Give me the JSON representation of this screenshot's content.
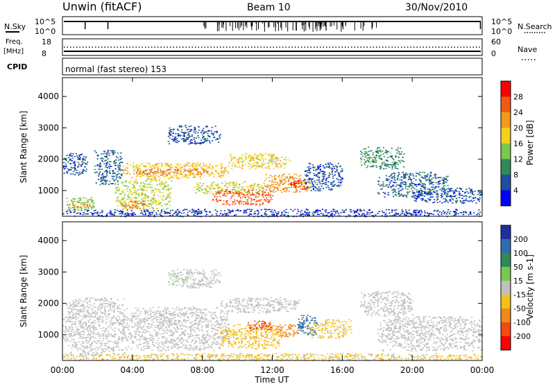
{
  "header": {
    "station": "Unwin (fitACF)",
    "beam": "Beam 10",
    "date": "30/Nov/2010"
  },
  "top_strip": {
    "nsky_label": "N.Sky",
    "nsky_ticks": [
      "10^5",
      "10^0"
    ],
    "nsearch_label": "N.Search",
    "nsearch_ticks": [
      "10^5",
      "10^0"
    ],
    "freq_label": "Freq.",
    "freq_unit": "[MHz]",
    "freq_ticks": [
      "18",
      "8"
    ],
    "nave_label": "Nave",
    "nave_ticks": [
      "60",
      "0"
    ],
    "cpid_label": "CPID",
    "cpid_value": "normal (fast stereo) 153"
  },
  "colors": {
    "power": [
      "#0000ff",
      "#1e4fa0",
      "#2e8b57",
      "#7cc84a",
      "#f2d21c",
      "#f29a1a",
      "#f25a12",
      "#ff0000"
    ],
    "velocity": [
      "#1e2fa0",
      "#2e6db0",
      "#2e8b57",
      "#78c850",
      "#c0c0c0",
      "#f2c21c",
      "#f28a1a",
      "#f24a12",
      "#ff0000"
    ],
    "ground_scatter": "#c0c0c0"
  },
  "chart_data": [
    {
      "type": "heatmap",
      "panel": "power",
      "ylabel": "Slant Range [km]",
      "ylim": [
        180,
        4600
      ],
      "yticks": [
        "1000",
        "2000",
        "3000",
        "4000"
      ],
      "xlim": [
        0,
        24
      ],
      "colorbar": {
        "label": "Power [dB]",
        "ticks": [
          "4",
          "8",
          "12",
          "16",
          "20",
          "24",
          "28"
        ],
        "range": [
          0,
          32
        ]
      },
      "regions": [
        {
          "t0": 0.0,
          "t1": 1.4,
          "r0": 1500,
          "r1": 2200,
          "level": 6
        },
        {
          "t0": 0.2,
          "t1": 1.8,
          "r0": 350,
          "r1": 800,
          "level": 14
        },
        {
          "t0": 0.5,
          "t1": 1.6,
          "r0": 450,
          "r1": 650,
          "level": 22
        },
        {
          "t0": 1.8,
          "t1": 3.4,
          "r0": 1200,
          "r1": 2300,
          "level": 7
        },
        {
          "t0": 3.0,
          "t1": 6.2,
          "r0": 400,
          "r1": 1400,
          "level": 16
        },
        {
          "t0": 3.3,
          "t1": 5.0,
          "r0": 450,
          "r1": 700,
          "level": 24
        },
        {
          "t0": 3.4,
          "t1": 9.5,
          "r0": 1400,
          "r1": 1900,
          "level": 19
        },
        {
          "t0": 4.2,
          "t1": 8.5,
          "r0": 1500,
          "r1": 1700,
          "level": 24
        },
        {
          "t0": 6.0,
          "t1": 9.0,
          "r0": 2500,
          "r1": 3100,
          "level": 6
        },
        {
          "t0": 7.5,
          "t1": 11.5,
          "r0": 900,
          "r1": 1300,
          "level": 17
        },
        {
          "t0": 8.5,
          "t1": 12.0,
          "r0": 550,
          "r1": 1050,
          "level": 26
        },
        {
          "t0": 9.5,
          "t1": 13.0,
          "r0": 1700,
          "r1": 2200,
          "level": 18
        },
        {
          "t0": 11.5,
          "t1": 14.2,
          "r0": 950,
          "r1": 1550,
          "level": 22
        },
        {
          "t0": 13.0,
          "t1": 14.0,
          "r0": 1050,
          "r1": 1350,
          "level": 28
        },
        {
          "t0": 13.8,
          "t1": 16.0,
          "r0": 1000,
          "r1": 1900,
          "level": 6
        },
        {
          "t0": 17.0,
          "t1": 19.5,
          "r0": 1700,
          "r1": 2400,
          "level": 10
        },
        {
          "t0": 18.0,
          "t1": 22.0,
          "r0": 800,
          "r1": 1600,
          "level": 7
        },
        {
          "t0": 20.0,
          "t1": 24.0,
          "r0": 600,
          "r1": 1100,
          "level": 6
        },
        {
          "t0": 0.0,
          "t1": 24.0,
          "r0": 180,
          "r1": 420,
          "level": 5
        }
      ]
    },
    {
      "type": "heatmap",
      "panel": "velocity",
      "ylabel": "Slant Range [km]",
      "xlabel": "Time UT",
      "ylim": [
        180,
        4600
      ],
      "yticks": [
        "1000",
        "2000",
        "3000",
        "4000"
      ],
      "xlim": [
        0,
        24
      ],
      "xticks": [
        "00:00",
        "04:00",
        "08:00",
        "12:00",
        "16:00",
        "20:00",
        "00:00"
      ],
      "colorbar": {
        "label": "Velocity [m s-1]",
        "ticks": [
          "200",
          "100",
          "50",
          "15",
          "-15",
          "-50",
          "-100",
          "-200"
        ],
        "range": [
          -250,
          250
        ]
      },
      "regions": [
        {
          "t0": 0.0,
          "t1": 3.5,
          "r0": 350,
          "r1": 2200,
          "vel": 0
        },
        {
          "t0": 3.4,
          "t1": 9.5,
          "r0": 500,
          "r1": 1900,
          "vel": 0
        },
        {
          "t0": 6.0,
          "t1": 9.0,
          "r0": 2500,
          "r1": 3100,
          "vel": 5
        },
        {
          "t0": 9.0,
          "t1": 13.5,
          "r0": 1700,
          "r1": 2200,
          "vel": 0
        },
        {
          "t0": 9.0,
          "t1": 12.5,
          "r0": 550,
          "r1": 1350,
          "vel": -40
        },
        {
          "t0": 10.5,
          "t1": 12.0,
          "r0": 1150,
          "r1": 1450,
          "vel": -150
        },
        {
          "t0": 12.0,
          "t1": 13.5,
          "r0": 950,
          "r1": 1350,
          "vel": -60
        },
        {
          "t0": 13.4,
          "t1": 14.6,
          "r0": 1000,
          "r1": 1650,
          "vel": 180
        },
        {
          "t0": 14.0,
          "t1": 16.5,
          "r0": 900,
          "r1": 1500,
          "vel": -20
        },
        {
          "t0": 17.0,
          "t1": 20.0,
          "r0": 1600,
          "r1": 2400,
          "vel": 0
        },
        {
          "t0": 18.0,
          "t1": 24.0,
          "r0": 500,
          "r1": 1600,
          "vel": 0
        },
        {
          "t0": 0.0,
          "t1": 24.0,
          "r0": 180,
          "r1": 420,
          "vel": -20
        }
      ]
    }
  ]
}
